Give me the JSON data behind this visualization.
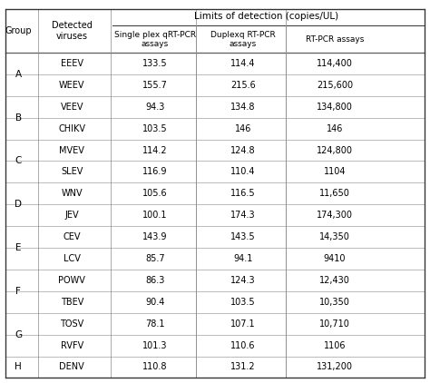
{
  "title_main": "Limits of detection (copies/UL)",
  "col_headers": [
    "Group",
    "Detected\nviruses",
    "Single plex qRT-PCR\nassays",
    "Duplexq RT-PCR\nassays",
    "RT-PCR assays"
  ],
  "groups": [
    "A",
    "B",
    "C",
    "D",
    "E",
    "F",
    "G",
    "H"
  ],
  "group_rows": {
    "A": [
      "EEEV",
      "WEEV"
    ],
    "B": [
      "VEEV",
      "CHIKV"
    ],
    "C": [
      "MVEV",
      "SLEV"
    ],
    "D": [
      "WNV",
      "JEV"
    ],
    "E": [
      "CEV",
      "LCV"
    ],
    "F": [
      "POWV",
      "TBEV"
    ],
    "G": [
      "TOSV",
      "RVFV"
    ],
    "H": [
      "DENV"
    ]
  },
  "data": {
    "EEEV": [
      "133.5",
      "114.4",
      "114,400"
    ],
    "WEEV": [
      "155.7",
      "215.6",
      "215,600"
    ],
    "VEEV": [
      "94.3",
      "134.8",
      "134,800"
    ],
    "CHIKV": [
      "103.5",
      "146",
      "146"
    ],
    "MVEV": [
      "114.2",
      "124.8",
      "124,800"
    ],
    "SLEV": [
      "116.9",
      "110.4",
      "1104"
    ],
    "WNV": [
      "105.6",
      "116.5",
      "11,650"
    ],
    "JEV": [
      "100.1",
      "174.3",
      "174,300"
    ],
    "CEV": [
      "143.9",
      "143.5",
      "14,350"
    ],
    "LCV": [
      "85.7",
      "94.1",
      "9410"
    ],
    "POWV": [
      "86.3",
      "124.3",
      "12,430"
    ],
    "TBEV": [
      "90.4",
      "103.5",
      "10,350"
    ],
    "TOSV": [
      "78.1",
      "107.1",
      "10,710"
    ],
    "RVFV": [
      "101.3",
      "110.6",
      "1106"
    ],
    "DENV": [
      "110.8",
      "131.2",
      "131,200"
    ]
  },
  "bg_color": "#ffffff",
  "text_color": "#000000",
  "line_color": "#888888",
  "header_line_color": "#333333"
}
